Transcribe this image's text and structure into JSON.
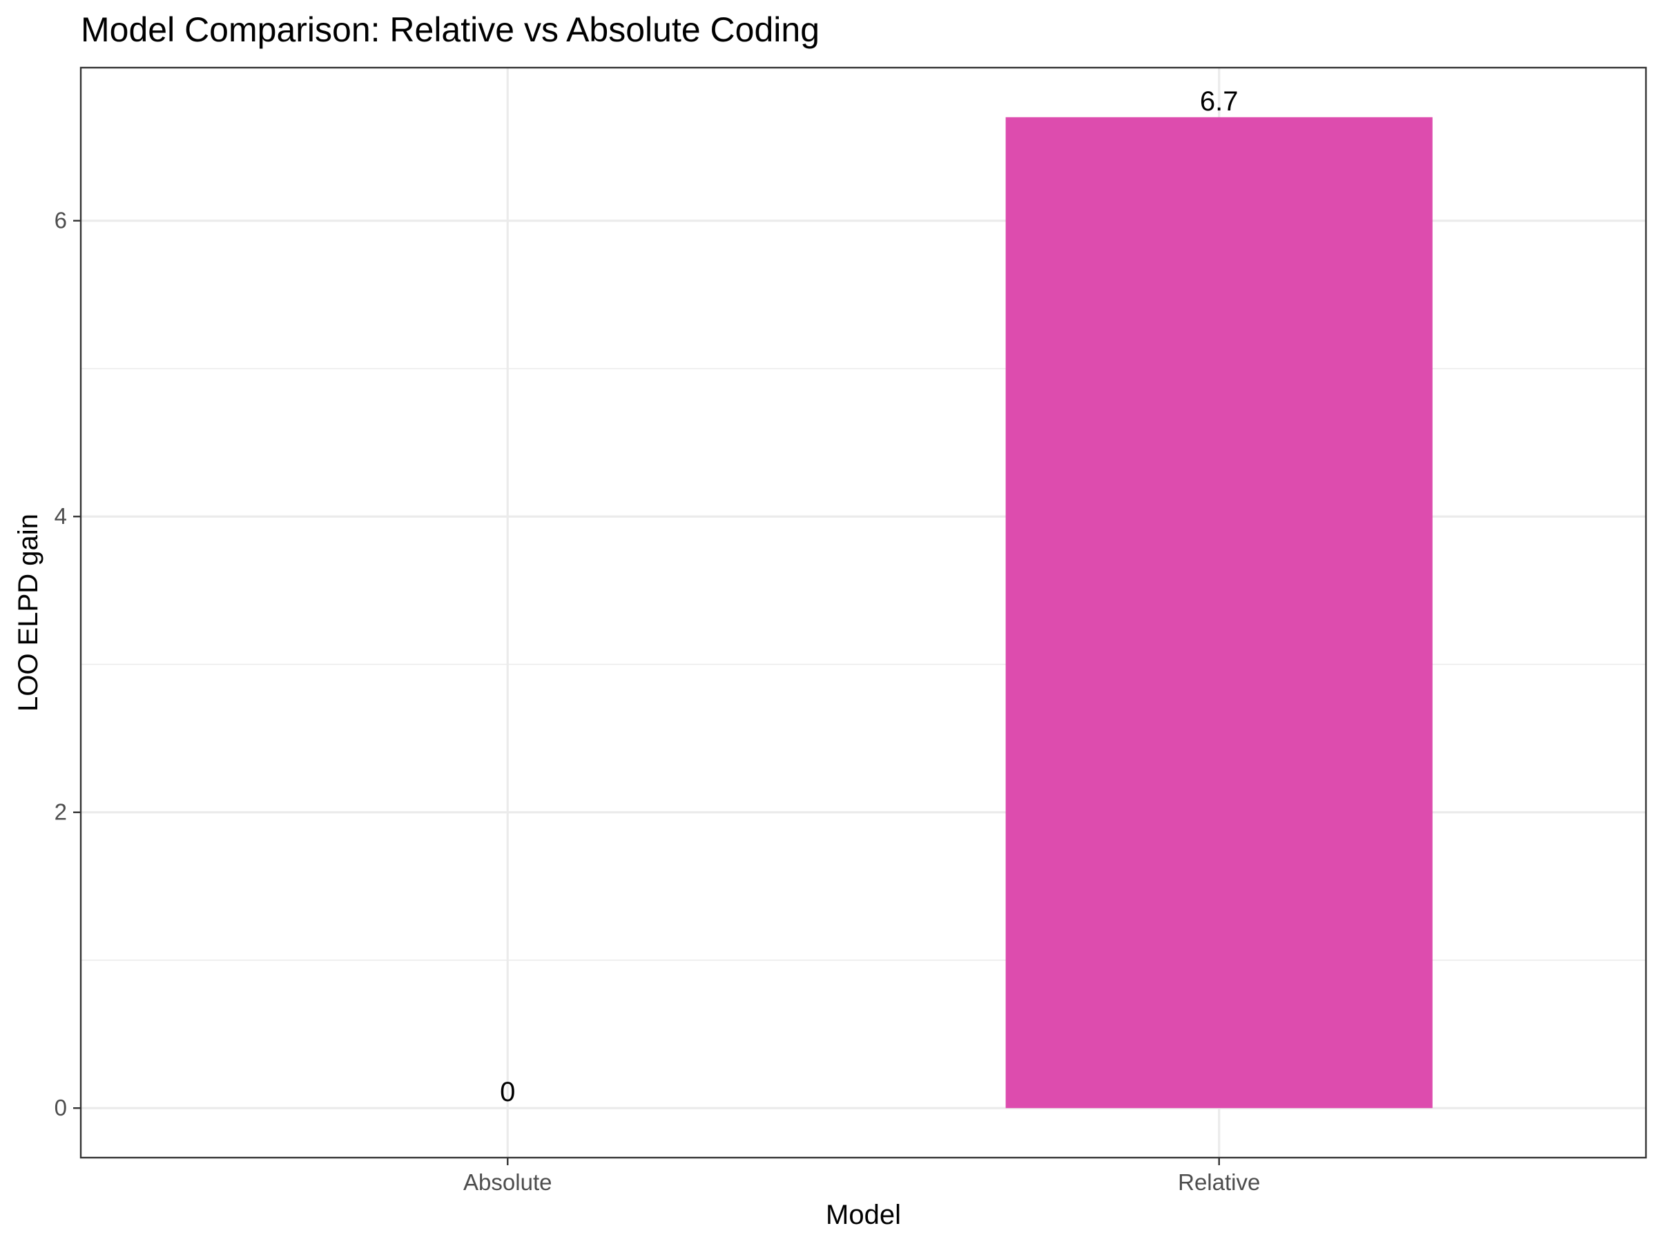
{
  "chart_data": {
    "type": "bar",
    "title": "Model Comparison: Relative vs Absolute Coding",
    "xlabel": "Model",
    "ylabel": "LOO ELPD gain",
    "categories": [
      "Absolute",
      "Relative"
    ],
    "values": [
      0,
      6.7
    ],
    "data_labels": [
      "0",
      "6.7"
    ],
    "bar_colors": [
      "#DD4CAE",
      "#DD4CAE"
    ],
    "ylim": [
      -0.335,
      7.035
    ],
    "y_ticks": [
      0,
      2,
      4,
      6
    ],
    "y_tick_labels": [
      "0",
      "2",
      "4",
      "6"
    ],
    "y_minor_ticks": [
      1,
      3,
      5
    ],
    "grid": true,
    "legend": "none",
    "theme": "bw"
  }
}
